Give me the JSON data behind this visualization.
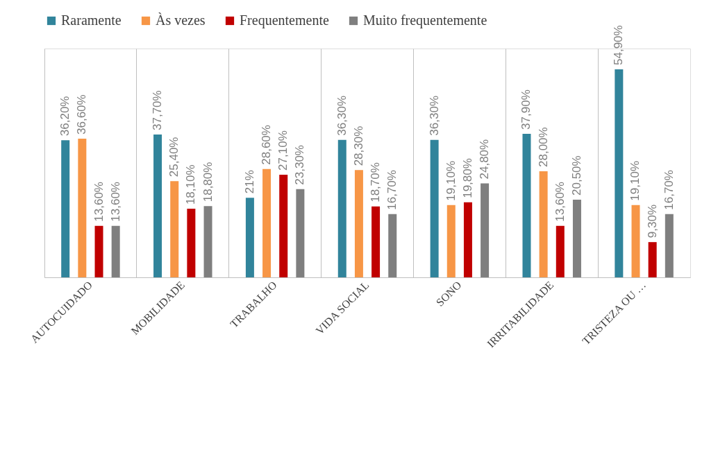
{
  "chart_data": {
    "type": "bar",
    "categories": [
      "AUTOCUIDADO",
      "MOBILIDADE",
      "TRABALHO",
      "VIDA SOCIAL",
      "SONO",
      "IRRITABILIDADE",
      "TRISTEZA OU …"
    ],
    "series": [
      {
        "name": "Raramente",
        "color": "#31849b",
        "values": [
          36.2,
          37.7,
          21,
          36.3,
          36.3,
          37.9,
          54.9
        ],
        "value_labels": [
          "36,20%",
          "37,70%",
          "21%",
          "36,30%",
          "36,30%",
          "37,90%",
          "54,90%"
        ]
      },
      {
        "name": "Às vezes",
        "color": "#f79646",
        "values": [
          36.6,
          25.4,
          28.6,
          28.3,
          19.1,
          28.0,
          19.1
        ],
        "value_labels": [
          "36,60%",
          "25,40%",
          "28,60%",
          "28,30%",
          "19,10%",
          "28,00%",
          "19,10%"
        ]
      },
      {
        "name": "Frequentemente",
        "color": "#c00000",
        "values": [
          13.6,
          18.1,
          27.1,
          18.7,
          19.8,
          13.6,
          9.3
        ],
        "value_labels": [
          "13,60%",
          "18,10%",
          "27,10%",
          "18,70%",
          "19,80%",
          "13,60%",
          "9,30%"
        ]
      },
      {
        "name": "Muito frequentemente",
        "color": "#7f7f7f",
        "values": [
          13.6,
          18.8,
          23.3,
          16.7,
          24.8,
          20.5,
          16.7
        ],
        "value_labels": [
          "13,60%",
          "18,80%",
          "23,30%",
          "16,70%",
          "24,80%",
          "20,50%",
          "16,70%"
        ]
      }
    ],
    "grid": "x",
    "legend": "top",
    "tick_labels": "x"
  }
}
